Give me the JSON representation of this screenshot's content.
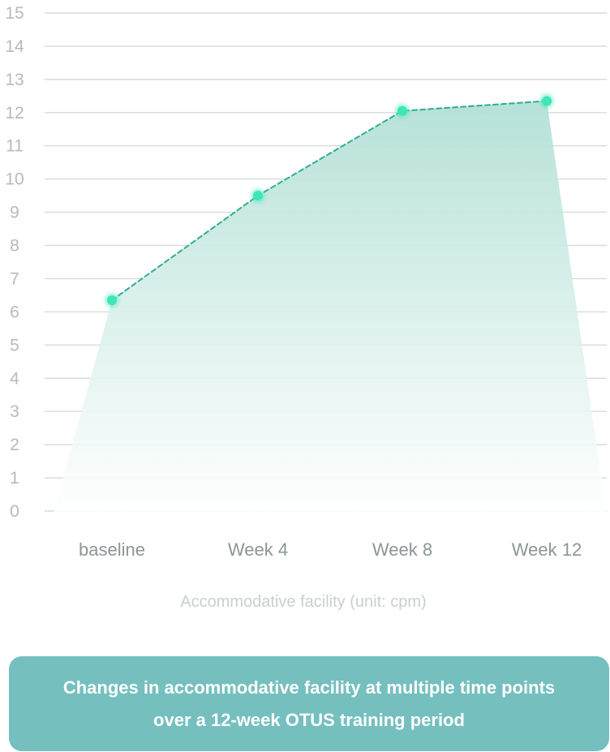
{
  "chart_data": {
    "type": "area",
    "categories": [
      "baseline",
      "Week 4",
      "Week 8",
      "Week 12"
    ],
    "values": [
      6.35,
      9.5,
      12.05,
      12.35
    ],
    "yticks": [
      0,
      1,
      2,
      3,
      4,
      5,
      6,
      7,
      8,
      9,
      10,
      11,
      12,
      13,
      14,
      15
    ],
    "ylim": [
      0,
      15
    ],
    "xlabel": "Accommodative facility (unit: cpm)",
    "ylabel": "",
    "grid": true,
    "colors": {
      "line": "#2fae93",
      "point": "#3ee6b8",
      "fill_top": "#b2e0d6",
      "fill_bottom": "#ffffff",
      "grid": "#d5dcdc"
    }
  },
  "caption": {
    "line1": "Changes in accommodative facility at multiple time points",
    "line2": "over a 12-week OTUS training period",
    "background": "#75bfbf"
  }
}
